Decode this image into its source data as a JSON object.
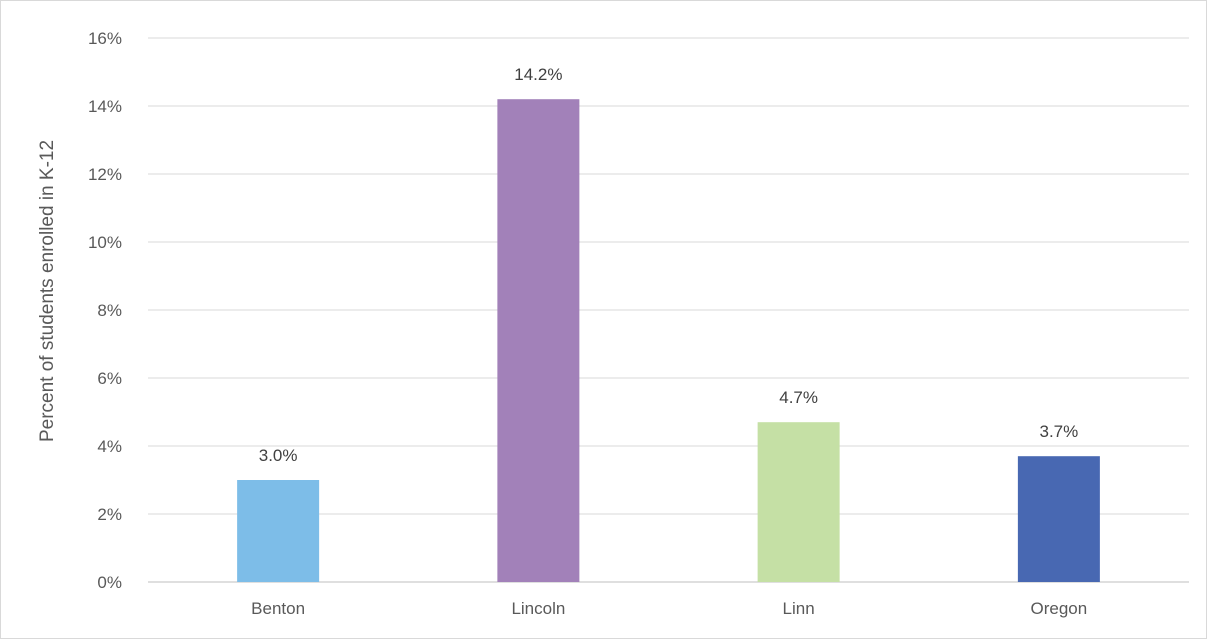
{
  "chart_data": {
    "type": "bar",
    "title": "",
    "xlabel": "",
    "ylabel": "Percent of students enrolled in K-12",
    "categories": [
      "Benton",
      "Lincoln",
      "Linn",
      "Oregon"
    ],
    "values": [
      3.0,
      14.2,
      4.7,
      3.7
    ],
    "data_labels": [
      "3.0%",
      "14.2%",
      "4.7%",
      "3.7%"
    ],
    "colors": [
      "#7dbde8",
      "#a281b9",
      "#c5e0a5",
      "#4868b2"
    ],
    "ylim": [
      0,
      16
    ],
    "yticks": [
      0,
      2,
      4,
      6,
      8,
      10,
      12,
      14,
      16
    ],
    "ytick_labels": [
      "0%",
      "2%",
      "4%",
      "6%",
      "8%",
      "10%",
      "12%",
      "14%",
      "16%"
    ],
    "grid": true,
    "legend": "none"
  }
}
